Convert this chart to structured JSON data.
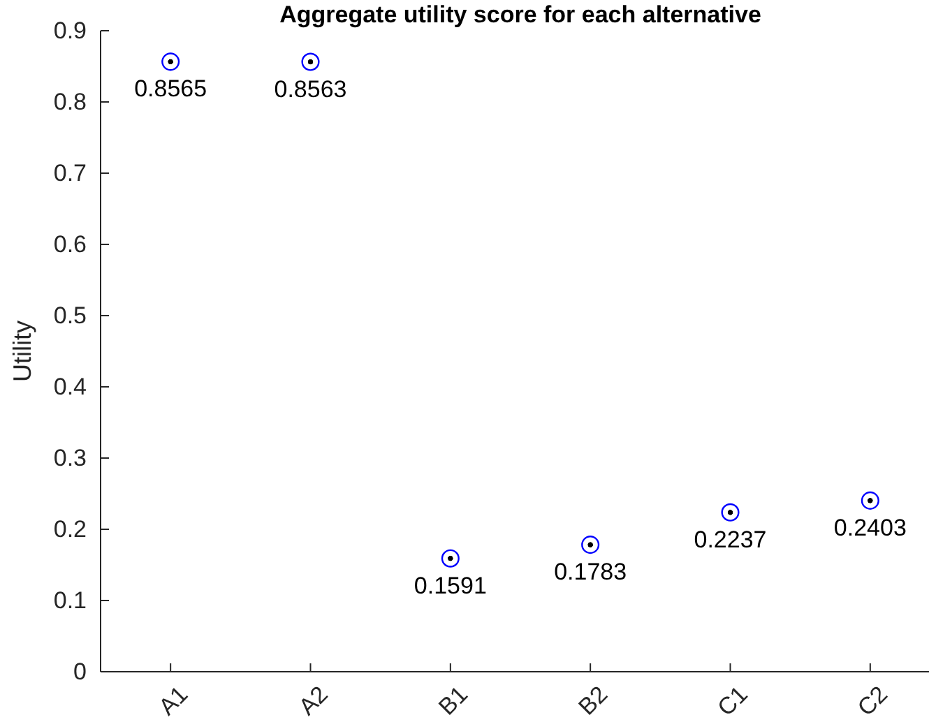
{
  "chart_data": {
    "type": "scatter",
    "title": "Aggregate utility score for each alternative",
    "ylabel": "Utility",
    "categories": [
      "A1",
      "A2",
      "B1",
      "B2",
      "C1",
      "C2"
    ],
    "series": [
      {
        "color": "#0000ff",
        "values": [
          0.8565,
          0.8563,
          0.1591,
          0.1783,
          0.2237,
          0.2403
        ]
      }
    ],
    "ylim": [
      0,
      0.9
    ],
    "yticks": [
      0,
      0.1,
      0.2,
      0.3,
      0.4,
      0.5,
      0.6,
      0.7,
      0.8,
      0.9
    ],
    "marker": "circle",
    "data_labels": true
  }
}
